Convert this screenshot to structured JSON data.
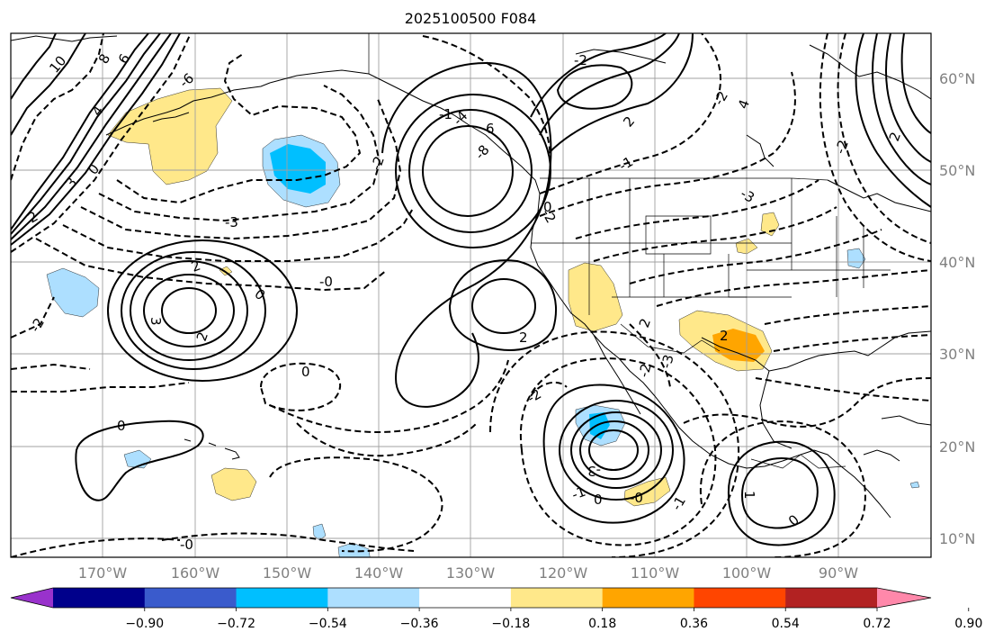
{
  "title": "2025100500 F084",
  "lat_labels": [
    "60°N",
    "50°N",
    "40°N",
    "30°N",
    "20°N",
    "10°N"
  ],
  "lon_labels": [
    "170°W",
    "160°W",
    "150°W",
    "140°W",
    "130°W",
    "120°W",
    "110°W",
    "100°W",
    "90°W"
  ],
  "colorbar": {
    "ticks": [
      "−0.90",
      "−0.72",
      "−0.54",
      "−0.36",
      "−0.18",
      "0.18",
      "0.36",
      "0.54",
      "0.72",
      "0.90"
    ],
    "colors": [
      "#9932CC",
      "#00008B",
      "#3A5BCC",
      "#00BFFF",
      "#ADDFFF",
      "#FFFFFF",
      "#FFE88A",
      "#FFA500",
      "#FF4500",
      "#B22222",
      "#FF88AA"
    ]
  },
  "shading_colors": {
    "light_blue": "#ADDFFF",
    "blue": "#00BFFF",
    "light_yellow": "#FFE88A",
    "orange": "#FFA500"
  },
  "contour_labels": [
    "10",
    "8",
    "6",
    "4",
    "3",
    "0",
    "2",
    "-2",
    "-3",
    "3",
    "2",
    "0",
    "-0",
    "2",
    "-6",
    "-4",
    "-2",
    "-1",
    "-8",
    "6",
    "-2",
    "2",
    "-2",
    "-1",
    "-3",
    "4",
    "2",
    "-2",
    "0",
    "0",
    "-2",
    "-3",
    "0",
    "-2",
    "-3",
    "2",
    "-1",
    "-0",
    "-0",
    "1",
    "-1",
    "0",
    "-2",
    "2",
    "2",
    "0"
  ]
}
